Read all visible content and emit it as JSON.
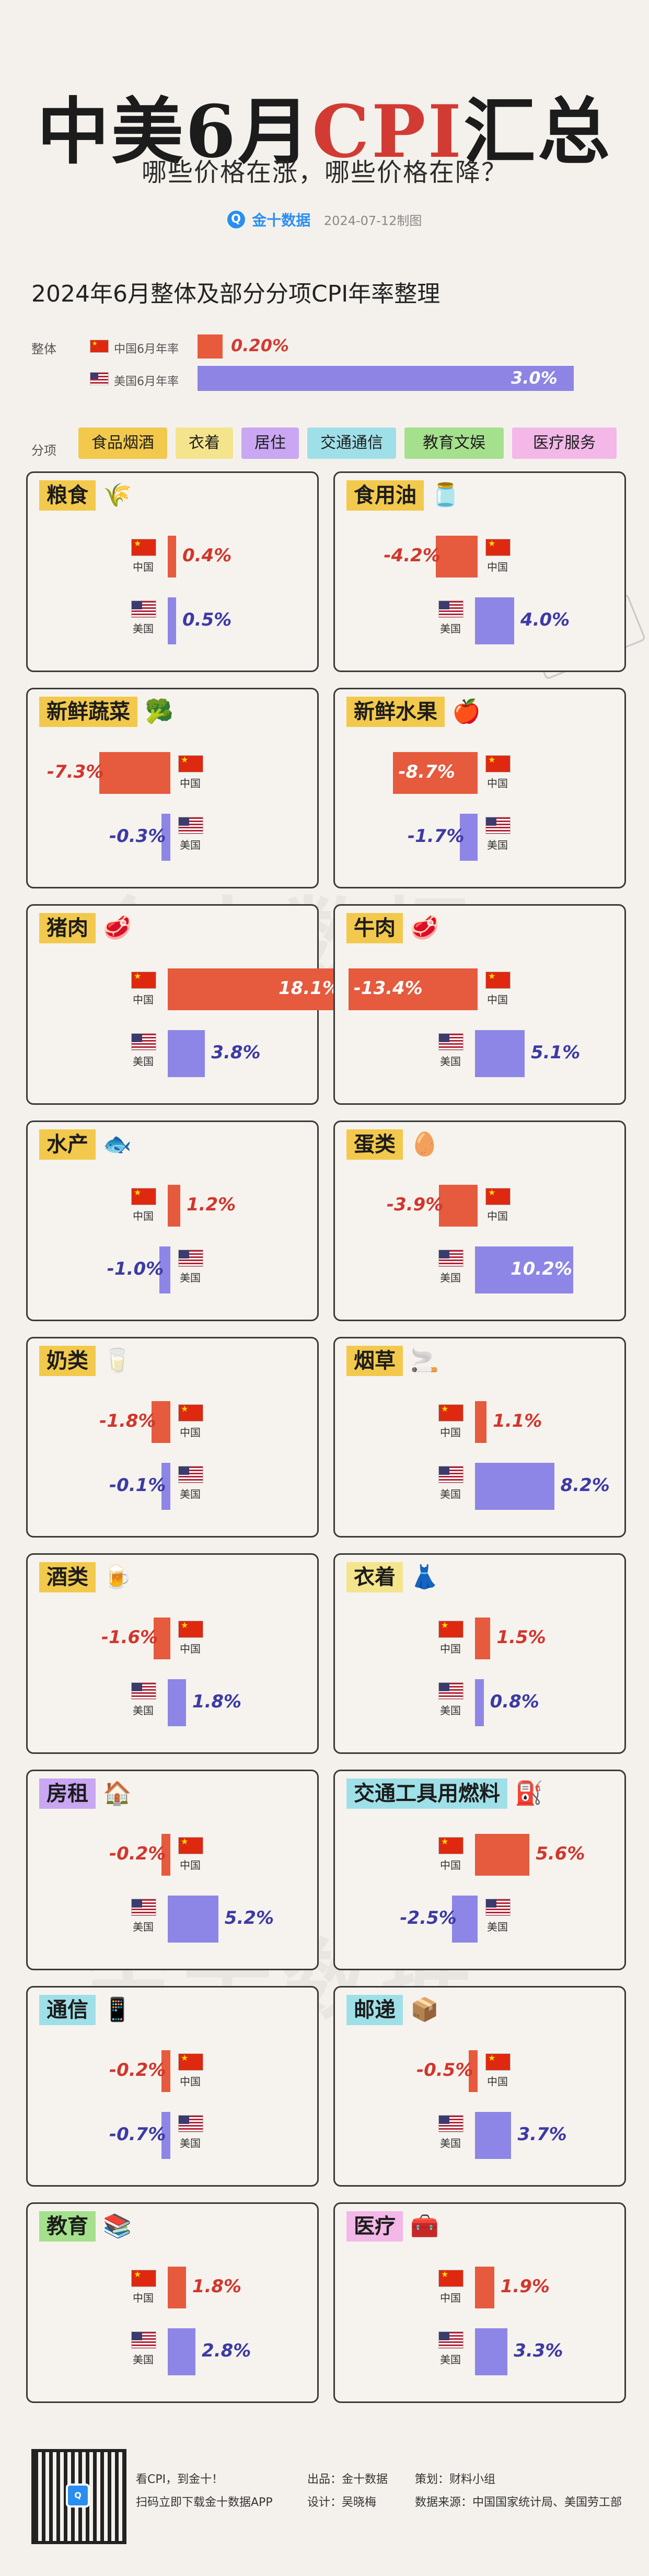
{
  "header": {
    "title_pre": "中美6月",
    "title_cpi": "CPI",
    "title_post": "汇总",
    "subtitle": "哪些价格在涨，哪些价格在降？",
    "brand_logo": "Q",
    "brand": "金十数据",
    "date": "2024-07-12制图"
  },
  "chart_data": {
    "type": "bar",
    "title": "2024年6月整体及部分分项CPI年率整理",
    "unit": "%",
    "overall": {
      "label": "整体",
      "series": [
        {
          "name": "中国6月年率",
          "value": 0.2,
          "display": "0.20%"
        },
        {
          "name": "美国6月年率",
          "value": 3.0,
          "display": "3.0%"
        }
      ]
    },
    "category_label": "分项",
    "categories": [
      "食品烟酒",
      "衣着",
      "居住",
      "交通通信",
      "教育文娱",
      "医疗服务"
    ],
    "items": [
      {
        "name": "粮食",
        "cn": 0.4,
        "us": 0.5
      },
      {
        "name": "食用油",
        "cn": -4.2,
        "us": 4.0
      },
      {
        "name": "新鲜蔬菜",
        "cn": -7.3,
        "us": -0.3
      },
      {
        "name": "新鲜水果",
        "cn": -8.7,
        "us": -1.7
      },
      {
        "name": "猪肉",
        "cn": 18.1,
        "us": 3.8
      },
      {
        "name": "牛肉",
        "cn": -13.4,
        "us": 5.1
      },
      {
        "name": "水产",
        "cn": 1.2,
        "us": -1.0
      },
      {
        "name": "蛋类",
        "cn": -3.9,
        "us": 10.2
      },
      {
        "name": "奶类",
        "cn": -1.8,
        "us": -0.1
      },
      {
        "name": "烟草",
        "cn": 1.1,
        "us": 8.2
      },
      {
        "name": "酒类",
        "cn": -1.6,
        "us": 1.8
      },
      {
        "name": "衣着",
        "cn": 1.5,
        "us": 0.8
      },
      {
        "name": "房租",
        "cn": -0.2,
        "us": 5.2
      },
      {
        "name": "交通工具用燃料",
        "cn": 5.6,
        "us": -2.5
      },
      {
        "name": "通信",
        "cn": -0.2,
        "us": -0.7
      },
      {
        "name": "邮递",
        "cn": -0.5,
        "us": 3.7
      },
      {
        "name": "教育",
        "cn": 1.8,
        "us": 2.8
      },
      {
        "name": "医疗",
        "cn": 1.9,
        "us": 3.3
      }
    ],
    "country_labels": {
      "cn": "中国",
      "us": "美国"
    }
  },
  "colors": {
    "china": "#e65a3d",
    "usa": "#8d86e6",
    "tag_food": "#f2c94c",
    "tag_clothing": "#f4e48c",
    "tag_housing": "#c9a7f2",
    "tag_transport": "#9fe0e8",
    "tag_education": "#a5e08c",
    "tag_medical": "#f3b7e8"
  },
  "icons": [
    "wheat-icon",
    "oil-bottle-icon",
    "broccoli-icon",
    "apple-icon",
    "meat-icon",
    "beef-icon",
    "fish-icon",
    "egg-icon",
    "milk-carton-icon",
    "cigarette-icon",
    "beer-bottle-icon",
    "clothing-icon",
    "house-icon",
    "fuel-pump-icon",
    "phone-icon",
    "package-icon",
    "books-icon",
    "medical-kit-icon"
  ],
  "watermark": "金十数据",
  "footer": {
    "line1": "看CPI，到金十！",
    "line2": "扫码立即下载金十数据APP",
    "producer": "出品：金十数据",
    "planner": "策划：财料小组",
    "designer": "设计：吴晓梅",
    "source": "数据来源：中国国家统计局、美国劳工部"
  }
}
